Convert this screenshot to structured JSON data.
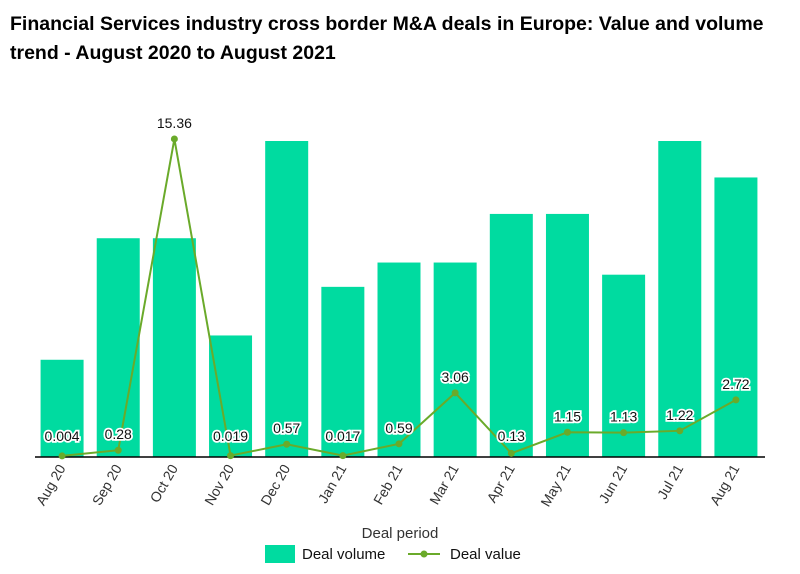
{
  "title": "Financial Services industry cross border M&A deals in Europe: Value and volume trend - August 2020 to August 2021",
  "chart_data": {
    "type": "bar",
    "categories": [
      "Aug 20",
      "Sep 20",
      "Oct 20",
      "Nov 20",
      "Dec 20",
      "Jan 21",
      "Feb 21",
      "Mar 21",
      "Apr 21",
      "May 21",
      "Jun 21",
      "Jul 21",
      "Aug 21"
    ],
    "series": [
      {
        "name": "Deal volume",
        "type": "bar",
        "color": "#00dba0",
        "values": [
          8,
          18,
          18,
          10,
          26,
          14,
          16,
          16,
          20,
          20,
          15,
          26,
          23
        ]
      },
      {
        "name": "Deal value",
        "type": "line",
        "color": "#6aaa2a",
        "values": [
          0.004,
          0.28,
          15.36,
          0.019,
          0.57,
          0.017,
          0.59,
          3.06,
          0.13,
          1.15,
          1.13,
          1.22,
          2.72
        ],
        "labels": [
          "0.004",
          "0.28",
          "15.36",
          "0.019",
          "0.57",
          "0.017",
          "0.59",
          "3.06",
          "0.13",
          "1.15",
          "1.13",
          "1.22",
          "2.72"
        ]
      }
    ],
    "xlabel": "Deal period",
    "ylim_volume": [
      0,
      26
    ],
    "ylim_value": [
      0,
      15.6
    ],
    "legend": "bottom",
    "grid": false
  }
}
